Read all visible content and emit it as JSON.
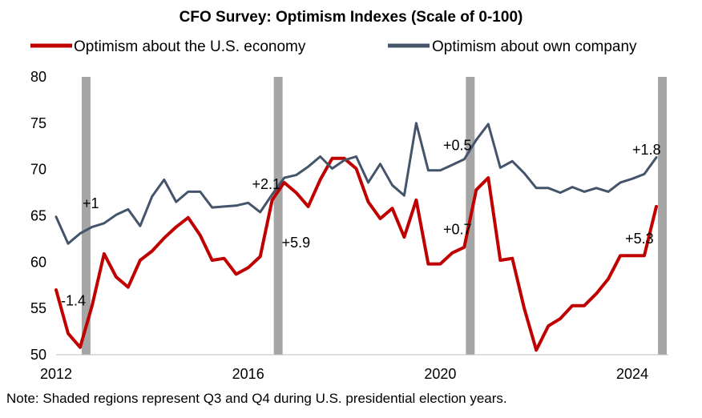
{
  "chart_data": {
    "type": "line",
    "title": "CFO Survey: Optimism Indexes (Scale of 0-100)",
    "xlabel": "",
    "ylabel": "",
    "ylim": [
      50,
      80
    ],
    "yticks": [
      50,
      55,
      60,
      65,
      70,
      75,
      80
    ],
    "xlim": [
      2012.0,
      2024.75
    ],
    "xticks": [
      {
        "value": 2012,
        "label": "2012"
      },
      {
        "value": 2016,
        "label": "2016"
      },
      {
        "value": 2020,
        "label": "2020"
      },
      {
        "value": 2024,
        "label": "2024"
      }
    ],
    "legend_position": "top",
    "shaded_periods": [
      {
        "start": 2012.5,
        "end": 2012.75
      },
      {
        "start": 2016.5,
        "end": 2016.75
      },
      {
        "start": 2020.5,
        "end": 2020.75
      },
      {
        "start": 2024.5,
        "end": 2024.75
      }
    ],
    "series": [
      {
        "name": "Optimism about the U.S. economy",
        "color": "#c00000",
        "x": [
          2012.0,
          2012.25,
          2012.5,
          2012.75,
          2013.0,
          2013.25,
          2013.5,
          2013.75,
          2014.0,
          2014.25,
          2014.5,
          2014.75,
          2015.0,
          2015.25,
          2015.5,
          2015.75,
          2016.0,
          2016.25,
          2016.5,
          2016.75,
          2017.0,
          2017.25,
          2017.5,
          2017.75,
          2018.0,
          2018.25,
          2018.5,
          2018.75,
          2019.0,
          2019.25,
          2019.5,
          2019.75,
          2020.0,
          2020.25,
          2020.5,
          2020.75,
          2021.0,
          2021.25,
          2021.5,
          2021.75,
          2022.0,
          2022.25,
          2022.5,
          2022.75,
          2023.0,
          2023.25,
          2023.5,
          2023.75,
          2024.0,
          2024.25,
          2024.5,
          2024.75
        ],
        "values": [
          57.0,
          52.3,
          50.8,
          55.3,
          60.9,
          58.4,
          57.3,
          60.2,
          61.2,
          62.6,
          63.8,
          64.8,
          62.9,
          60.2,
          60.4,
          58.7,
          59.4,
          60.6,
          66.7,
          68.6,
          67.5,
          66.0,
          68.9,
          71.2,
          71.2,
          70.1,
          66.5,
          64.7,
          65.8,
          62.7,
          66.7,
          59.8,
          59.8,
          61.0,
          61.6,
          67.8,
          69.1,
          60.2,
          60.4,
          55.0,
          50.5,
          53.1,
          53.9,
          55.3,
          55.3,
          56.6,
          58.2,
          60.7,
          60.7,
          60.7,
          66.0,
          null
        ]
      },
      {
        "name": "Optimism about own company",
        "color": "#44546a",
        "x": [
          2012.0,
          2012.25,
          2012.5,
          2012.75,
          2013.0,
          2013.25,
          2013.5,
          2013.75,
          2014.0,
          2014.25,
          2014.5,
          2014.75,
          2015.0,
          2015.25,
          2015.5,
          2015.75,
          2016.0,
          2016.25,
          2016.5,
          2016.75,
          2017.0,
          2017.25,
          2017.5,
          2017.75,
          2018.0,
          2018.25,
          2018.5,
          2018.75,
          2019.0,
          2019.25,
          2019.5,
          2019.75,
          2020.0,
          2020.25,
          2020.5,
          2020.75,
          2021.0,
          2021.25,
          2021.5,
          2021.75,
          2022.0,
          2022.25,
          2022.5,
          2022.75,
          2023.0,
          2023.25,
          2023.5,
          2023.75,
          2024.0,
          2024.25,
          2024.5,
          2024.75
        ],
        "values": [
          64.9,
          62.0,
          63.1,
          63.8,
          64.2,
          65.1,
          65.7,
          63.9,
          67.1,
          68.9,
          66.5,
          67.6,
          67.6,
          65.9,
          66.0,
          66.1,
          66.4,
          65.4,
          67.3,
          69.1,
          69.4,
          70.3,
          71.4,
          70.1,
          71.0,
          71.4,
          68.6,
          70.6,
          68.3,
          67.2,
          75.0,
          69.9,
          69.9,
          70.5,
          71.1,
          73.2,
          74.9,
          70.2,
          70.9,
          69.6,
          68.0,
          68.0,
          67.5,
          68.1,
          67.6,
          68.0,
          67.6,
          68.6,
          69.0,
          69.5,
          71.3,
          null
        ]
      }
    ],
    "annotations": [
      {
        "text": "+1",
        "x": 2012.55,
        "y": 65.8
      },
      {
        "text": "-1.4",
        "x": 2012.1,
        "y": 55.3
      },
      {
        "text": "+2.1",
        "x": 2016.08,
        "y": 67.9
      },
      {
        "text": "+5.9",
        "x": 2016.7,
        "y": 61.6
      },
      {
        "text": "+0.5",
        "x": 2020.06,
        "y": 72.1
      },
      {
        "text": "+0.7",
        "x": 2020.06,
        "y": 63.0
      },
      {
        "text": "+1.8",
        "x": 2024.0,
        "y": 71.6
      },
      {
        "text": "+5.3",
        "x": 2023.85,
        "y": 62.0
      }
    ],
    "note": "Note: Shaded regions represent Q3 and Q4 during U.S. presidential election years."
  }
}
